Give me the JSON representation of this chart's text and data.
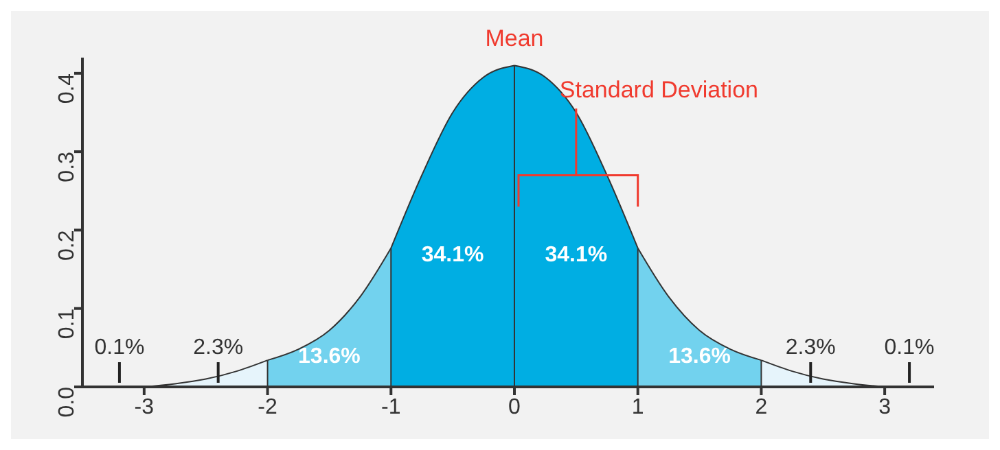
{
  "chart_data": {
    "type": "area",
    "xlim": [
      -3.5,
      3.4
    ],
    "xticks": [
      -3,
      -2,
      -1,
      0,
      1,
      2,
      3
    ],
    "ylim": [
      0,
      0.42
    ],
    "yticks": [
      {
        "value": 0,
        "label": "0.0"
      },
      0.1,
      0.2,
      0.3,
      0.4
    ],
    "legend": false,
    "grid": false,
    "series": [
      {
        "color": "#e6f4fb",
        "x": [
          -3,
          -2.75,
          -2.5,
          -2.25,
          -2
        ],
        "values": [
          0,
          0.004,
          0.01,
          0.02,
          0.034
        ]
      },
      {
        "color": "#72d2ee",
        "x": [
          -2,
          -1.75,
          -1.5,
          -1.25,
          -1
        ],
        "values": [
          0.034,
          0.048,
          0.072,
          0.115,
          0.177
        ]
      },
      {
        "color": "#00aee3",
        "x": [
          -1,
          -0.75,
          -0.5,
          -0.25,
          0
        ],
        "values": [
          0.177,
          0.27,
          0.35,
          0.395,
          0.41
        ]
      },
      {
        "color": "#00aee3",
        "x": [
          0,
          0.25,
          0.5,
          0.75,
          1
        ],
        "values": [
          0.41,
          0.395,
          0.35,
          0.27,
          0.177
        ]
      },
      {
        "color": "#72d2ee",
        "x": [
          1,
          1.25,
          1.5,
          1.75,
          2
        ],
        "values": [
          0.177,
          0.115,
          0.072,
          0.048,
          0.034
        ]
      },
      {
        "color": "#e6f4fb",
        "x": [
          2,
          2.25,
          2.5,
          2.75,
          3
        ],
        "values": [
          0.034,
          0.02,
          0.01,
          0.004,
          0
        ]
      }
    ],
    "ref_lines": [
      {
        "axis": "x",
        "value": -2,
        "color": "#333333"
      },
      {
        "axis": "x",
        "value": -1,
        "color": "#333333"
      },
      {
        "axis": "x",
        "value": 0,
        "color": "#333333"
      },
      {
        "axis": "x",
        "value": 1,
        "color": "#333333"
      },
      {
        "axis": "x",
        "value": 2,
        "color": "#333333"
      }
    ],
    "annotations": [
      "Mean",
      "Standard Deviation",
      "34.1%",
      "34.1%",
      "13.6%",
      "13.6%",
      "2.3%",
      "2.3%",
      "0.1%",
      "0.1%"
    ]
  }
}
